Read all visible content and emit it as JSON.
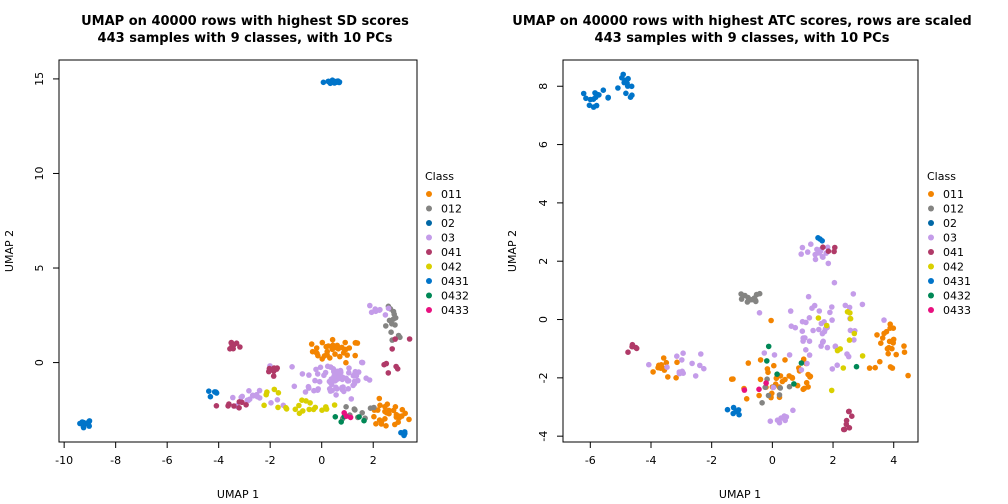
{
  "chart_data": [
    {
      "type": "scatter",
      "title_line1": "UMAP on 40000 rows with highest SD scores",
      "title_line2": "443 samples with 9 classes, with 10 PCs",
      "xlabel": "UMAP 1",
      "ylabel": "UMAP 2",
      "xlim": [
        -10.2,
        3.7
      ],
      "ylim": [
        -4.2,
        16.0
      ],
      "xticks": [
        -10,
        -8,
        -6,
        -4,
        -2,
        0,
        2
      ],
      "yticks": [
        0,
        5,
        10,
        15
      ],
      "legend_placement": "right",
      "clusters": [
        {
          "cls": "0431",
          "cx": 0.5,
          "cy": 14.85,
          "sx": 0.35,
          "sy": 0.1,
          "n": 14
        },
        {
          "cls": "0431",
          "cx": -9.2,
          "cy": -3.2,
          "sx": 0.25,
          "sy": 0.15,
          "n": 10
        },
        {
          "cls": "011",
          "cx": 0.6,
          "cy": 0.6,
          "sx": 0.8,
          "sy": 0.5,
          "n": 35
        },
        {
          "cls": "011",
          "cx": 2.5,
          "cy": -2.8,
          "sx": 0.7,
          "sy": 0.6,
          "n": 30
        },
        {
          "cls": "012",
          "cx": 2.8,
          "cy": 1.8,
          "sx": 0.3,
          "sy": 0.9,
          "n": 14
        },
        {
          "cls": "012",
          "cx": 1.5,
          "cy": -2.6,
          "sx": 0.6,
          "sy": 0.4,
          "n": 10
        },
        {
          "cls": "03",
          "cx": 0.5,
          "cy": -0.8,
          "sx": 1.2,
          "sy": 0.9,
          "n": 70
        },
        {
          "cls": "03",
          "cx": -2.8,
          "cy": -1.9,
          "sx": 0.8,
          "sy": 0.3,
          "n": 18
        },
        {
          "cls": "03",
          "cx": 2.3,
          "cy": 2.8,
          "sx": 0.4,
          "sy": 0.3,
          "n": 8
        },
        {
          "cls": "041",
          "cx": -3.5,
          "cy": 0.9,
          "sx": 0.3,
          "sy": 0.3,
          "n": 8
        },
        {
          "cls": "041",
          "cx": -3.6,
          "cy": -2.2,
          "sx": 0.4,
          "sy": 0.2,
          "n": 8
        },
        {
          "cls": "041",
          "cx": -1.8,
          "cy": -0.5,
          "sx": 0.5,
          "sy": 0.4,
          "n": 7
        },
        {
          "cls": "041",
          "cx": 2.8,
          "cy": 0.2,
          "sx": 0.5,
          "sy": 1.0,
          "n": 8
        },
        {
          "cls": "042",
          "cx": -0.5,
          "cy": -2.3,
          "sx": 1.0,
          "sy": 0.3,
          "n": 18
        },
        {
          "cls": "042",
          "cx": -2.0,
          "cy": -1.7,
          "sx": 0.3,
          "sy": 0.2,
          "n": 4
        },
        {
          "cls": "0431",
          "cx": -4.2,
          "cy": -1.6,
          "sx": 0.2,
          "sy": 0.1,
          "n": 5
        },
        {
          "cls": "0431",
          "cx": 3.2,
          "cy": -3.7,
          "sx": 0.2,
          "sy": 0.2,
          "n": 4
        },
        {
          "cls": "0432",
          "cx": 1.0,
          "cy": -3.0,
          "sx": 0.8,
          "sy": 0.5,
          "n": 5
        },
        {
          "cls": "0433",
          "cx": 1.1,
          "cy": -2.6,
          "sx": 0.5,
          "sy": 0.4,
          "n": 3
        }
      ]
    },
    {
      "type": "scatter",
      "title_line1": "UMAP on 40000 rows with highest ATC scores, rows are scaled",
      "title_line2": "443 samples with 9 classes, with 10 PCs",
      "xlabel": "UMAP 1",
      "ylabel": "UMAP 2",
      "xlim": [
        -6.9,
        4.8
      ],
      "ylim": [
        -4.2,
        8.9
      ],
      "xticks": [
        -6,
        -4,
        -2,
        0,
        2,
        4
      ],
      "yticks": [
        -4,
        -2,
        0,
        2,
        4,
        6,
        8
      ],
      "legend_placement": "right",
      "clusters": [
        {
          "cls": "0431",
          "cx": -5.8,
          "cy": 7.6,
          "sx": 0.4,
          "sy": 0.2,
          "n": 14
        },
        {
          "cls": "0431",
          "cx": -4.8,
          "cy": 8.0,
          "sx": 0.3,
          "sy": 0.35,
          "n": 12
        },
        {
          "cls": "011",
          "cx": 3.8,
          "cy": -1.0,
          "sx": 0.5,
          "sy": 0.6,
          "n": 25
        },
        {
          "cls": "011",
          "cx": 0.3,
          "cy": -2.0,
          "sx": 1.3,
          "sy": 1.0,
          "n": 40
        },
        {
          "cls": "011",
          "cx": -3.5,
          "cy": -1.7,
          "sx": 0.6,
          "sy": 0.3,
          "n": 12
        },
        {
          "cls": "012",
          "cx": -0.8,
          "cy": 0.7,
          "sx": 0.4,
          "sy": 0.2,
          "n": 12
        },
        {
          "cls": "012",
          "cx": 0.0,
          "cy": -2.5,
          "sx": 0.6,
          "sy": 0.4,
          "n": 8
        },
        {
          "cls": "03",
          "cx": 1.4,
          "cy": 2.2,
          "sx": 0.5,
          "sy": 0.3,
          "n": 15
        },
        {
          "cls": "03",
          "cx": 1.8,
          "cy": -0.5,
          "sx": 1.3,
          "sy": 1.2,
          "n": 55
        },
        {
          "cls": "03",
          "cx": -3.0,
          "cy": -1.5,
          "sx": 0.8,
          "sy": 0.4,
          "n": 15
        },
        {
          "cls": "03",
          "cx": 0.5,
          "cy": -3.4,
          "sx": 0.5,
          "sy": 0.2,
          "n": 8
        },
        {
          "cls": "041",
          "cx": 2.5,
          "cy": -3.4,
          "sx": 0.15,
          "sy": 0.3,
          "n": 8
        },
        {
          "cls": "041",
          "cx": -4.5,
          "cy": -1.0,
          "sx": 0.3,
          "sy": 0.15,
          "n": 5
        },
        {
          "cls": "041",
          "cx": 1.8,
          "cy": 2.4,
          "sx": 0.3,
          "sy": 0.2,
          "n": 4
        },
        {
          "cls": "042",
          "cx": 2.3,
          "cy": -0.5,
          "sx": 1.0,
          "sy": 0.8,
          "n": 12
        },
        {
          "cls": "0431",
          "cx": -1.2,
          "cy": -3.1,
          "sx": 0.2,
          "sy": 0.15,
          "n": 6
        },
        {
          "cls": "0431",
          "cx": 1.5,
          "cy": 2.8,
          "sx": 0.1,
          "sy": 0.1,
          "n": 3
        },
        {
          "cls": "0432",
          "cx": 0.5,
          "cy": -2.0,
          "sx": 1.2,
          "sy": 0.8,
          "n": 6
        },
        {
          "cls": "0433",
          "cx": -0.5,
          "cy": -2.5,
          "sx": 1.0,
          "sy": 0.5,
          "n": 3
        }
      ]
    }
  ],
  "legend": {
    "title": "Class",
    "items": [
      {
        "label": "011",
        "color": "#F38400"
      },
      {
        "label": "012",
        "color": "#848482"
      },
      {
        "label": "02",
        "color": "#0067A5"
      },
      {
        "label": "03",
        "color": "#C49CE9"
      },
      {
        "label": "041",
        "color": "#B03A68"
      },
      {
        "label": "042",
        "color": "#D9D000"
      },
      {
        "label": "0431",
        "color": "#0074C9"
      },
      {
        "label": "0432",
        "color": "#008856"
      },
      {
        "label": "0433",
        "color": "#E8107F"
      }
    ]
  }
}
